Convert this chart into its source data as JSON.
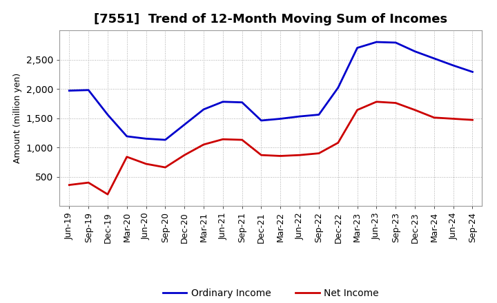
{
  "title": "[7551]  Trend of 12-Month Moving Sum of Incomes",
  "ylabel": "Amount (million yen)",
  "x_labels": [
    "Jun-19",
    "Sep-19",
    "Dec-19",
    "Mar-20",
    "Jun-20",
    "Sep-20",
    "Dec-20",
    "Mar-21",
    "Jun-21",
    "Sep-21",
    "Dec-21",
    "Mar-22",
    "Jun-22",
    "Sep-22",
    "Dec-22",
    "Mar-23",
    "Jun-23",
    "Sep-23",
    "Dec-23",
    "Mar-24",
    "Jun-24",
    "Sep-24"
  ],
  "ordinary_income": [
    1970,
    1980,
    1560,
    1190,
    1150,
    1130,
    1390,
    1650,
    1780,
    1770,
    1460,
    1490,
    1530,
    1560,
    2020,
    2700,
    2800,
    2790,
    2640,
    2520,
    2400,
    2290
  ],
  "net_income": [
    360,
    400,
    200,
    840,
    720,
    660,
    870,
    1050,
    1140,
    1130,
    870,
    855,
    870,
    900,
    1080,
    1640,
    1780,
    1760,
    1640,
    1510,
    1490,
    1470
  ],
  "ordinary_color": "#0000cc",
  "net_color": "#cc0000",
  "ylim": [
    0,
    3000
  ],
  "yticks": [
    500,
    1000,
    1500,
    2000,
    2500
  ],
  "background_color": "#ffffff",
  "grid_color": "#aaaaaa",
  "title_fontsize": 13,
  "axis_fontsize": 9,
  "tick_fontsize": 9,
  "legend_fontsize": 10
}
